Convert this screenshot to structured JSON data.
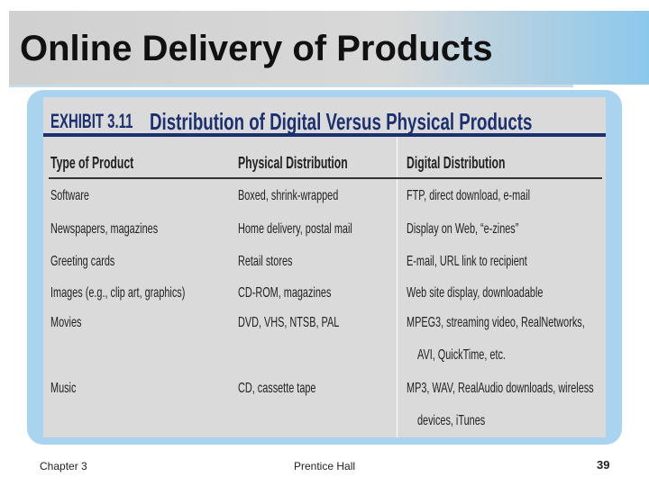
{
  "title": "Online Delivery of Products",
  "exhibit": {
    "label": "EXHIBIT 3.11",
    "title": "Distribution of Digital Versus Physical Products"
  },
  "table": {
    "headers": [
      "Type of Product",
      "Physical Distribution",
      "Digital Distribution"
    ],
    "rows": [
      [
        "Software",
        "Boxed, shrink-wrapped",
        "FTP, direct download, e-mail"
      ],
      [
        "Newspapers, magazines",
        "Home delivery, postal mail",
        "Display on Web, “e-zines”"
      ],
      [
        "Greeting cards",
        "Retail stores",
        "E-mail, URL link to recipient"
      ],
      [
        "Images (e.g., clip art, graphics)",
        "CD-ROM, magazines",
        "Web site display, downloadable"
      ],
      [
        "Movies",
        "DVD, VHS, NTSB, PAL",
        [
          "MPEG3, streaming video, RealNetworks,",
          "AVI, QuickTime, etc."
        ]
      ],
      [
        "Music",
        "CD, cassette tape",
        [
          "MP3, WAV, RealAudio downloads, wireless",
          "devices, iTunes"
        ]
      ]
    ]
  },
  "footer": {
    "left": "Chapter 3",
    "center": "Prentice Hall",
    "page": "39"
  }
}
